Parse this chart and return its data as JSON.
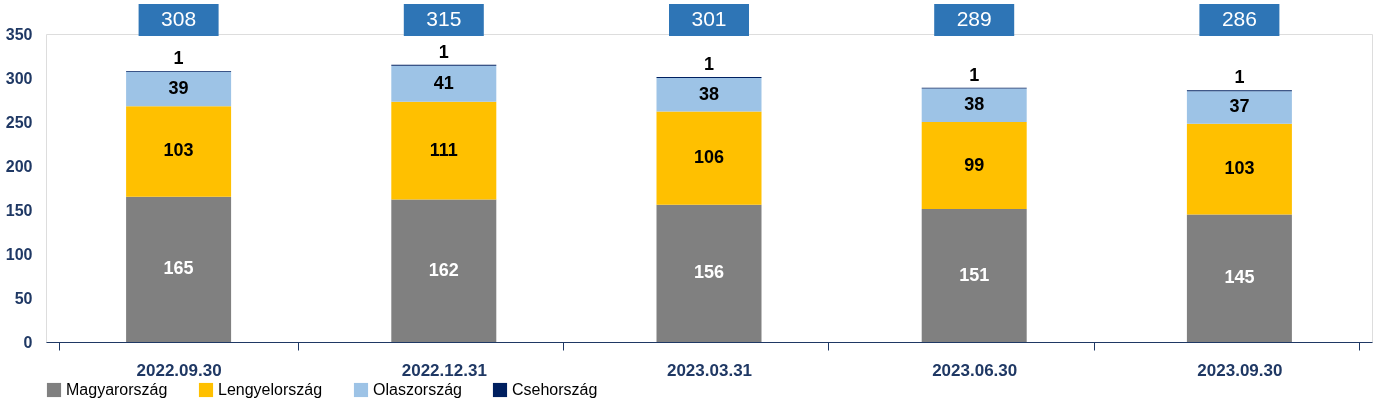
{
  "chart_data": {
    "type": "bar",
    "stacked": true,
    "categories": [
      "2022.09.30",
      "2022.12.31",
      "2023.03.31",
      "2023.06.30",
      "2023.09.30"
    ],
    "series": [
      {
        "name": "Magyarország",
        "color": "#808080",
        "values": [
          165,
          162,
          156,
          151,
          145
        ]
      },
      {
        "name": "Lengyelország",
        "color": "#ffc000",
        "values": [
          103,
          111,
          106,
          99,
          103
        ]
      },
      {
        "name": "Olaszország",
        "color": "#9dc3e6",
        "values": [
          39,
          41,
          38,
          38,
          37
        ]
      },
      {
        "name": "Csehország",
        "color": "#002060",
        "values": [
          1,
          1,
          1,
          1,
          1
        ]
      }
    ],
    "totals": [
      "308",
      "315",
      "301",
      "289",
      "286"
    ],
    "ylim": [
      0,
      350
    ],
    "yticks": [
      0,
      50,
      100,
      150,
      200,
      250,
      300,
      350
    ],
    "data_labels": true,
    "grid": false,
    "legend": "bottom"
  }
}
